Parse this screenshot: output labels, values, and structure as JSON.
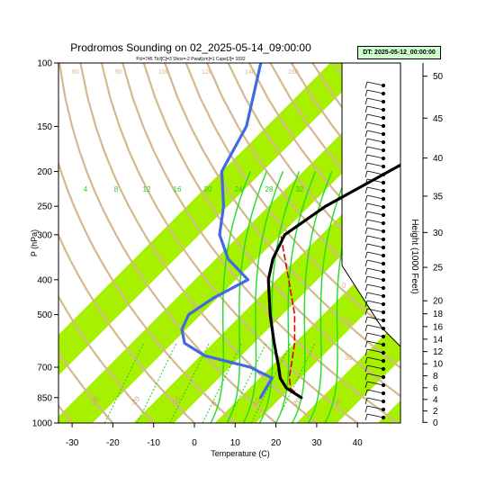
{
  "chart_data": {
    "type": "line",
    "title": "Prodromos Sounding on 02_2025-05-14_09:00:00",
    "subtitle": "Pcl=745 Tlcl[C]=3 Shox=-2 Pwat[cm]=1 Cape[J]= 1032",
    "xlabel": "Temperature (C)",
    "ylabel": "P (hPa)",
    "y2label": "Height (1000 Feet)",
    "datetime_label": "DT: 2025-05-12_00:00:00",
    "x_ticks": [
      "-30",
      "-20",
      "-10",
      "0",
      "10",
      "20",
      "30",
      "40"
    ],
    "y_ticks": [
      "100",
      "150",
      "200",
      "250",
      "300",
      "400",
      "500",
      "700",
      "850",
      "1000"
    ],
    "height_ticks": [
      "50",
      "45",
      "40",
      "35",
      "30",
      "25",
      "20",
      "18",
      "16",
      "14",
      "12",
      "10",
      "8",
      "6",
      "4",
      "2",
      "0"
    ],
    "isotherm_labels": [
      "-30",
      "-20",
      "-10",
      "0",
      "10",
      "20",
      "30"
    ],
    "isotherm_label_values": [
      -30,
      -20,
      -10,
      0,
      10,
      20,
      30
    ],
    "dry_adiabat_labels": [
      "-30",
      "40",
      "30",
      "20",
      "10",
      "0",
      "-10",
      "-30"
    ],
    "top_adiabat_labels": [
      "80",
      "90",
      "100",
      "120",
      "140",
      "160"
    ],
    "mixing_ratio_labels": [
      "4",
      "8",
      "12",
      "16",
      "20",
      "24",
      "28",
      "32"
    ],
    "x_range": [
      -33,
      45
    ],
    "p_range": [
      1000,
      100
    ],
    "series": [
      {
        "name": "Temperature",
        "color": "#000000",
        "pressure": [
          850,
          800,
          750,
          700,
          600,
          500,
          400,
          350,
          300,
          250,
          200,
          150,
          100
        ],
        "temp": [
          20,
          14,
          10,
          7,
          0,
          -8,
          -17,
          -21,
          -24,
          -21,
          -14,
          -5,
          3
        ]
      },
      {
        "name": "Dewpoint",
        "color": "#4169e1",
        "pressure": [
          850,
          750,
          700,
          650,
          600,
          550,
          500,
          450,
          400,
          350,
          300,
          250,
          200,
          150,
          100
        ],
        "dewpoint": [
          10,
          8,
          0,
          -14,
          -22,
          -26,
          -28,
          -26,
          -22,
          -32,
          -40,
          -46,
          -55,
          -60,
          -72
        ]
      },
      {
        "name": "Parcel",
        "color": "#dd0000",
        "pressure": [
          850,
          800,
          745,
          700,
          600,
          500,
          400,
          300
        ],
        "temp": [
          20,
          15,
          12,
          10,
          5,
          -2,
          -12,
          -25
        ]
      }
    ],
    "wind_barbs_column": "right",
    "grid": true
  }
}
